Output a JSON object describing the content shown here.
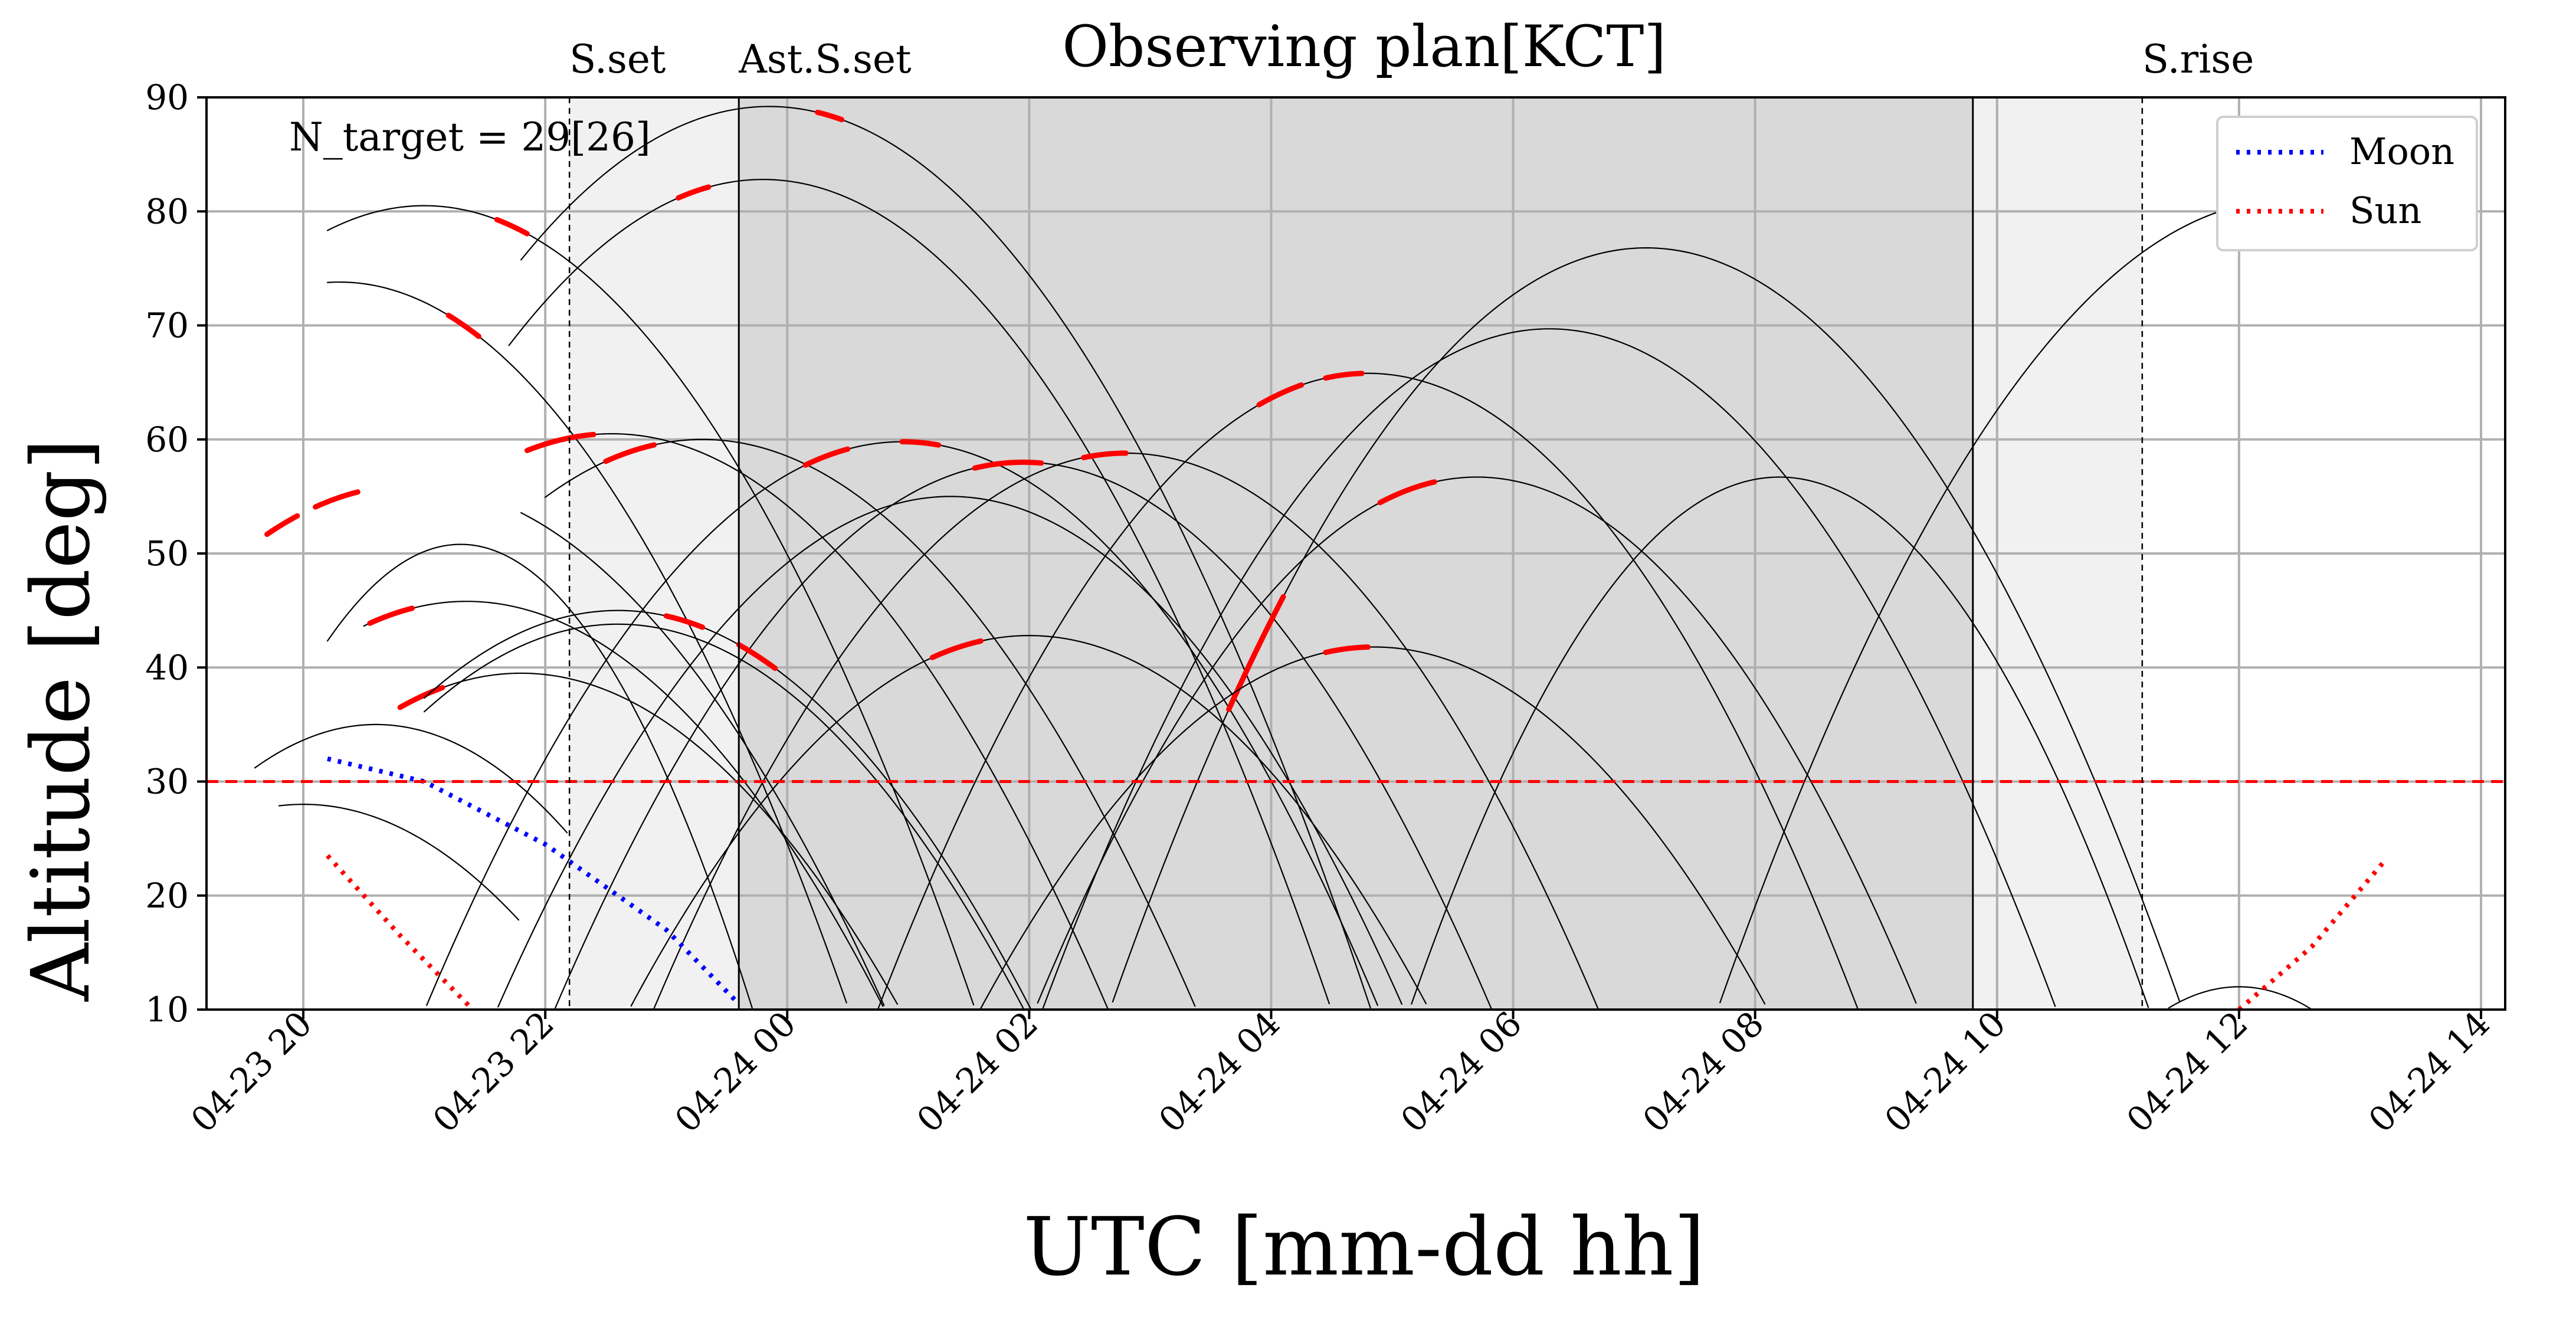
{
  "chart_data": {
    "type": "line",
    "title": "Observing plan[KCT]",
    "xlabel": "UTC [mm-dd hh]",
    "ylabel": "Altitude [deg]",
    "xlim": [
      -0.8,
      18.2
    ],
    "ylim": [
      10,
      90
    ],
    "x_unit": "hours after 2024-04-23 20:00 UTC",
    "x_ticks": [
      {
        "x": 0,
        "label": "04-23 20"
      },
      {
        "x": 2,
        "label": "04-23 22"
      },
      {
        "x": 4,
        "label": "04-24 00"
      },
      {
        "x": 6,
        "label": "04-24 02"
      },
      {
        "x": 8,
        "label": "04-24 04"
      },
      {
        "x": 10,
        "label": "04-24 06"
      },
      {
        "x": 12,
        "label": "04-24 08"
      },
      {
        "x": 14,
        "label": "04-24 10"
      },
      {
        "x": 16,
        "label": "04-24 12"
      },
      {
        "x": 18,
        "label": "04-24 14"
      }
    ],
    "y_ticks": [
      10,
      20,
      30,
      40,
      50,
      60,
      70,
      80,
      90
    ],
    "grid": true,
    "annotation": "N_target = 29[26]",
    "limit_line": {
      "y": 30,
      "color": "#ff0000",
      "style": "dashed"
    },
    "events": [
      {
        "label": "S.set",
        "x": 2.2,
        "style": "dashed"
      },
      {
        "label": "Ast.S.set",
        "x": 3.6,
        "style": "solid"
      },
      {
        "label": "S.rise",
        "x": 15.2,
        "style": "dashed"
      }
    ],
    "astro_end": 13.8,
    "shading": {
      "twilight_color": "#f1f1f1",
      "night_color": "#d9d9d9"
    },
    "legend": {
      "placement": "top-right",
      "entries": [
        {
          "name": "Moon",
          "color": "#0000ff",
          "style": "dotted"
        },
        {
          "name": "Sun",
          "color": "#ff0000",
          "style": "dotted"
        }
      ]
    },
    "sun": {
      "color": "#ff0000",
      "segments": [
        [
          [
            0.2,
            23.5
          ],
          [
            0.8,
            16.5
          ],
          [
            1.4,
            10
          ]
        ],
        [
          [
            16.0,
            10
          ],
          [
            16.6,
            15.5
          ],
          [
            17.2,
            23
          ]
        ]
      ]
    },
    "moon": {
      "color": "#0000ff",
      "points": [
        [
          0.2,
          32
        ],
        [
          1.0,
          30
        ],
        [
          2.0,
          24.5
        ],
        [
          3.0,
          17
        ],
        [
          3.6,
          10.5
        ]
      ]
    },
    "targets": [
      {
        "peak_x": 1.3,
        "peak_y": 50.8,
        "width": 7.0,
        "range": [
          0.2,
          10.6
        ]
      },
      {
        "peak_x": 0.6,
        "peak_y": 35.0,
        "width": 3.8,
        "range": [
          -0.4,
          2.2
        ]
      },
      {
        "peak_x": 0.0,
        "peak_y": 28.0,
        "width": 3.2,
        "range": [
          -0.2,
          1.8
        ]
      },
      {
        "peak_x": 3.85,
        "peak_y": 89.2,
        "width": 3.2,
        "range": [
          1.8,
          10.0
        ],
        "highlights": [
          [
            4.25,
            4.45
          ]
        ]
      },
      {
        "peak_x": 3.8,
        "peak_y": 82.8,
        "width": 3.3,
        "range": [
          1.7,
          10.0
        ],
        "highlights": [
          [
            3.1,
            3.35
          ]
        ]
      },
      {
        "peak_x": 1.0,
        "peak_y": 80.5,
        "width": 3.4,
        "range": [
          0.2,
          10.0
        ],
        "highlights": [
          [
            1.6,
            1.85
          ]
        ]
      },
      {
        "peak_x": 0.3,
        "peak_y": 73.8,
        "width": 3.6,
        "range": [
          0.2,
          8.5
        ],
        "highlights": [
          [
            1.2,
            1.45
          ]
        ]
      },
      {
        "peak_x": 0.9,
        "peak_y": 56.0,
        "width": 3.0,
        "range": [
          1.8,
          12.0
        ],
        "highlights": [
          [
            0.1,
            0.45
          ],
          [
            -0.3,
            -0.05
          ]
        ]
      },
      {
        "peak_x": 2.55,
        "peak_y": 60.5,
        "width": 3.0,
        "range": [
          2.0,
          11.0
        ],
        "highlights": [
          [
            1.85,
            2.4
          ]
        ]
      },
      {
        "peak_x": 3.3,
        "peak_y": 60.0,
        "width": 3.0,
        "range": [
          2.0,
          12.0
        ],
        "highlights": [
          [
            2.5,
            2.9
          ]
        ]
      },
      {
        "peak_x": 4.95,
        "peak_y": 59.8,
        "width": 3.2,
        "range": [
          0.0,
          14.0
        ],
        "highlights": [
          [
            4.15,
            4.5
          ],
          [
            4.95,
            5.25
          ]
        ]
      },
      {
        "peak_x": 5.35,
        "peak_y": 55.0,
        "width": 3.2,
        "range": [
          0.5,
          14.0
        ]
      },
      {
        "peak_x": 5.95,
        "peak_y": 58.0,
        "width": 3.2,
        "range": [
          1.0,
          14.0
        ],
        "highlights": [
          [
            5.55,
            6.1
          ]
        ]
      },
      {
        "peak_x": 6.8,
        "peak_y": 58.8,
        "width": 3.2,
        "range": [
          2.0,
          15.0
        ],
        "highlights": [
          [
            6.45,
            6.8
          ]
        ]
      },
      {
        "peak_x": 8.8,
        "peak_y": 65.8,
        "width": 3.4,
        "range": [
          4.0,
          17.2
        ],
        "highlights": [
          [
            7.9,
            8.25
          ],
          [
            8.45,
            8.75
          ]
        ]
      },
      {
        "peak_x": 9.7,
        "peak_y": 56.7,
        "width": 3.5,
        "range": [
          4.0,
          17.2
        ],
        "highlights": [
          [
            8.9,
            9.35
          ]
        ]
      },
      {
        "peak_x": 10.3,
        "peak_y": 69.7,
        "width": 3.4,
        "range": [
          5.0,
          17.2
        ]
      },
      {
        "peak_x": 11.1,
        "peak_y": 76.8,
        "width": 3.4,
        "range": [
          6.0,
          17.2
        ],
        "highlights": [
          [
            7.65,
            8.1
          ]
        ]
      },
      {
        "peak_x": 12.2,
        "peak_y": 56.7,
        "width": 5.0,
        "range": [
          4.0,
          17.2
        ]
      },
      {
        "peak_x": 1.35,
        "peak_y": 45.8,
        "width": 3.0,
        "range": [
          0.5,
          10.0
        ],
        "highlights": [
          [
            0.55,
            0.9
          ]
        ]
      },
      {
        "peak_x": 1.8,
        "peak_y": 39.5,
        "width": 3.0,
        "range": [
          0.8,
          9.0
        ],
        "highlights": [
          [
            0.8,
            1.15
          ]
        ]
      },
      {
        "peak_x": 2.6,
        "peak_y": 45.0,
        "width": 3.0,
        "range": [
          1.0,
          10.0
        ],
        "highlights": [
          [
            3.0,
            3.3
          ],
          [
            3.6,
            3.9
          ]
        ]
      },
      {
        "peak_x": 2.6,
        "peak_y": 43.8,
        "width": 3.0,
        "range": [
          1.0,
          10.0
        ]
      },
      {
        "peak_x": 6.0,
        "peak_y": 42.8,
        "width": 3.0,
        "range": [
          1.0,
          14.0
        ],
        "highlights": [
          [
            5.2,
            5.6
          ]
        ]
      },
      {
        "peak_x": 8.85,
        "peak_y": 41.8,
        "width": 3.0,
        "range": [
          2.0,
          17.2
        ],
        "highlights": [
          [
            8.45,
            8.8
          ]
        ]
      },
      {
        "peak_x": 16.4,
        "peak_y": 81.0,
        "width": 3.2,
        "range": [
          10.0,
          17.2
        ]
      },
      {
        "peak_x": 14.0,
        "peak_y": 10.0,
        "width": 2.5,
        "range": [
          0.2,
          17.2
        ]
      },
      {
        "peak_x": 16.0,
        "peak_y": 12.0,
        "width": 5.5,
        "range": [
          12.0,
          17.2
        ]
      }
    ]
  }
}
